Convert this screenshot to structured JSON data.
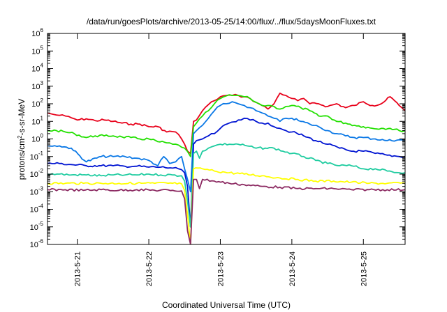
{
  "chart_data": {
    "type": "line",
    "title": "/data/run/goesPlots/archive/2013-05-25/14:00/flux/../flux/5daysMoonFluxes.txt",
    "xlabel": "Coordinated Universal Time (UTC)",
    "ylabel": "protons/cm2-s-sr-MeV",
    "y_scale": "log",
    "ylim": [
      "1e-6",
      "1e6"
    ],
    "xlim": [
      "2013-05-20T14:00",
      "2013-05-25T14:00"
    ],
    "grid": false,
    "legend": "none",
    "x_ticks": [
      "2013-5-21",
      "2013-5-22",
      "2013-5-23",
      "2013-5-24",
      "2013-5-25"
    ],
    "y_ticks": [
      "1e-6",
      "1e-5",
      "1e-4",
      "1e-3",
      "1e-2",
      "1e-1",
      "1e0",
      "1e1",
      "1e2",
      "1e3",
      "1e4",
      "1e5",
      "1e6"
    ],
    "series": [
      {
        "color": "#e8001a",
        "x": [
          "2013-05-20T14:00",
          "2013-05-20T16:00",
          "2013-05-20T18:00",
          "2013-05-20T20:00",
          "2013-05-20T22:00",
          "2013-05-21T00:00",
          "2013-05-21T03:00",
          "2013-05-21T06:00",
          "2013-05-21T09:00",
          "2013-05-21T12:00",
          "2013-05-21T15:00",
          "2013-05-21T18:00",
          "2013-05-21T21:00",
          "2013-05-22T00:00",
          "2013-05-22T03:00",
          "2013-05-22T06:00",
          "2013-05-22T08:00",
          "2013-05-22T09:00",
          "2013-05-22T10:00",
          "2013-05-22T11:00",
          "2013-05-22T12:00",
          "2013-05-22T13:00",
          "2013-05-22T14:00",
          "2013-05-22T15:00",
          "2013-05-22T16:00",
          "2013-05-22T18:00",
          "2013-05-22T20:00",
          "2013-05-22T22:00",
          "2013-05-23T00:00",
          "2013-05-23T02:00",
          "2013-05-23T04:00",
          "2013-05-23T06:00",
          "2013-05-23T08:00",
          "2013-05-23T10:00",
          "2013-05-23T12:00",
          "2013-05-23T14:00",
          "2013-05-23T16:00",
          "2013-05-23T18:00",
          "2013-05-23T20:00",
          "2013-05-23T22:00",
          "2013-05-24T00:00",
          "2013-05-24T02:00",
          "2013-05-24T04:00",
          "2013-05-24T06:00",
          "2013-05-24T09:00",
          "2013-05-24T12:00",
          "2013-05-24T15:00",
          "2013-05-24T18:00",
          "2013-05-24T21:00",
          "2013-05-25T00:00",
          "2013-05-25T03:00",
          "2013-05-25T06:00",
          "2013-05-25T09:00",
          "2013-05-25T12:00",
          "2013-05-25T14:00"
        ],
        "y": [
          "30",
          "25",
          "22",
          "20",
          "16",
          "12",
          "14",
          "11",
          "12",
          "10",
          "8",
          "7",
          "7",
          "5",
          "5",
          "2.5",
          "2.6",
          "2.5",
          "1.8",
          "1",
          "0.5",
          "0.2",
          "0.15",
          "10",
          "12",
          "40",
          "90",
          "150",
          "250",
          "300",
          "300",
          "300",
          "250",
          "200",
          "120",
          "80",
          "50",
          "100",
          "400",
          "300",
          "200",
          "150",
          "200",
          "100",
          "100",
          "70",
          "100",
          "60",
          "80",
          "130",
          "80",
          "100",
          "250",
          "80",
          "40"
        ]
      },
      {
        "color": "#22e000",
        "x": [
          "2013-05-20T14:00",
          "2013-05-20T17:00",
          "2013-05-20T20:00",
          "2013-05-20T23:00",
          "2013-05-21T03:00",
          "2013-05-21T06:00",
          "2013-05-21T09:00",
          "2013-05-21T12:00",
          "2013-05-21T15:00",
          "2013-05-21T18:00",
          "2013-05-21T21:00",
          "2013-05-22T00:00",
          "2013-05-22T03:00",
          "2013-05-22T06:00",
          "2013-05-22T08:00",
          "2013-05-22T10:00",
          "2013-05-22T12:00",
          "2013-05-22T14:00",
          "2013-05-22T15:00",
          "2013-05-22T16:00",
          "2013-05-22T18:00",
          "2013-05-22T20:00",
          "2013-05-22T22:00",
          "2013-05-23T00:00",
          "2013-05-23T02:00",
          "2013-05-23T04:00",
          "2013-05-23T06:00",
          "2013-05-23T08:00",
          "2013-05-23T10:00",
          "2013-05-23T12:00",
          "2013-05-23T14:00",
          "2013-05-23T16:00",
          "2013-05-23T18:00",
          "2013-05-23T20:00",
          "2013-05-23T22:00",
          "2013-05-24T00:00",
          "2013-05-24T03:00",
          "2013-05-24T06:00",
          "2013-05-24T09:00",
          "2013-05-24T12:00",
          "2013-05-24T15:00",
          "2013-05-24T18:00",
          "2013-05-24T21:00",
          "2013-05-25T00:00",
          "2013-05-25T03:00",
          "2013-05-25T06:00",
          "2013-05-25T09:00",
          "2013-05-25T12:00",
          "2013-05-25T14:00"
        ],
        "y": [
          "3",
          "3",
          "2.5",
          "2",
          "1.2",
          "1.5",
          "1.5",
          "1.5",
          "1.3",
          "1.2",
          "1",
          "1",
          "0.7",
          "0.6",
          "0.5",
          "0.45",
          "0.3",
          "0.1",
          "5",
          "8",
          "20",
          "40",
          "100",
          "200",
          "280",
          "300",
          "300",
          "250",
          "200",
          "120",
          "80",
          "80",
          "70",
          "50",
          "70",
          "80",
          "60",
          "40",
          "20",
          "20",
          "10",
          "8",
          "6",
          "5",
          "4",
          "4",
          "4",
          "3",
          "3"
        ]
      },
      {
        "color": "#0a78e6",
        "x": [
          "2013-05-20T14:00",
          "2013-05-20T18:00",
          "2013-05-20T22:00",
          "2013-05-21T03:00",
          "2013-05-21T08:00",
          "2013-05-21T12:00",
          "2013-05-21T16:00",
          "2013-05-21T20:00",
          "2013-05-22T00:00",
          "2013-05-22T03:00",
          "2013-05-22T05:00",
          "2013-05-22T07:00",
          "2013-05-22T09:00",
          "2013-05-22T11:00",
          "2013-05-22T12:00",
          "2013-05-22T13:00",
          "2013-05-22T14:00",
          "2013-05-22T15:00",
          "2013-05-22T16:00",
          "2013-05-22T18:00",
          "2013-05-22T20:00",
          "2013-05-22T22:00",
          "2013-05-23T00:00",
          "2013-05-23T02:00",
          "2013-05-23T04:00",
          "2013-05-23T06:00",
          "2013-05-23T08:00",
          "2013-05-23T10:00",
          "2013-05-23T12:00",
          "2013-05-23T14:00",
          "2013-05-23T16:00",
          "2013-05-23T18:00",
          "2013-05-23T20:00",
          "2013-05-23T22:00",
          "2013-05-24T00:00",
          "2013-05-24T03:00",
          "2013-05-24T06:00",
          "2013-05-24T09:00",
          "2013-05-24T12:00",
          "2013-05-24T15:00",
          "2013-05-24T18:00",
          "2013-05-24T21:00",
          "2013-05-25T00:00",
          "2013-05-25T04:00",
          "2013-05-25T08:00",
          "2013-05-25T12:00",
          "2013-05-25T14:00"
        ],
        "y": [
          "0.4",
          "0.4",
          "0.3",
          "0.05",
          "0.1",
          "0.1",
          "0.1",
          "0.08",
          "0.06",
          "0.03",
          "0.1",
          "0.04",
          "0.05",
          "0.1",
          "0.02",
          "0.005",
          "0.001",
          "2",
          "3",
          "6",
          "15",
          "40",
          "80",
          "100",
          "130",
          "100",
          "80",
          "60",
          "40",
          "30",
          "20",
          "15",
          "10",
          "15",
          "15",
          "10",
          "7",
          "5",
          "3",
          "2",
          "1.5",
          "1.2",
          "1.2",
          "1",
          "0.8",
          "0.9",
          "0.8"
        ]
      },
      {
        "color": "#0014d2",
        "x": [
          "2013-05-20T14:00",
          "2013-05-20T18:00",
          "2013-05-20T22:00",
          "2013-05-21T03:00",
          "2013-05-21T08:00",
          "2013-05-21T12:00",
          "2013-05-21T16:00",
          "2013-05-21T20:00",
          "2013-05-22T00:00",
          "2013-05-22T04:00",
          "2013-05-22T08:00",
          "2013-05-22T10:00",
          "2013-05-22T12:00",
          "2013-05-22T13:00",
          "2013-05-22T14:00",
          "2013-05-22T15:00",
          "2013-05-22T16:00",
          "2013-05-22T18:00",
          "2013-05-22T20:00",
          "2013-05-22T22:00",
          "2013-05-23T00:00",
          "2013-05-23T03:00",
          "2013-05-23T06:00",
          "2013-05-23T08:00",
          "2013-05-23T10:00",
          "2013-05-23T12:00",
          "2013-05-23T14:00",
          "2013-05-23T16:00",
          "2013-05-23T18:00",
          "2013-05-23T20:00",
          "2013-05-23T22:00",
          "2013-05-24T00:00",
          "2013-05-24T04:00",
          "2013-05-24T08:00",
          "2013-05-24T12:00",
          "2013-05-24T16:00",
          "2013-05-24T20:00",
          "2013-05-25T00:00",
          "2013-05-25T04:00",
          "2013-05-25T08:00",
          "2013-05-25T12:00",
          "2013-05-25T14:00"
        ],
        "y": [
          "0.04",
          "0.04",
          "0.035",
          "0.03",
          "0.03",
          "0.03",
          "0.028",
          "0.028",
          "0.025",
          "0.025",
          "0.022",
          "0.02",
          "0.012",
          "0.002",
          "0.00001",
          "0.5",
          "0.8",
          "1",
          "1.5",
          "2",
          "4",
          "8",
          "12",
          "15",
          "12",
          "10",
          "8",
          "8",
          "5",
          "4",
          "3",
          "2.5",
          "1.5",
          "0.8",
          "0.5",
          "0.3",
          "0.2",
          "0.2",
          "0.15",
          "0.12",
          "0.1",
          "0.1"
        ]
      },
      {
        "color": "#1fcca0",
        "x": [
          "2013-05-20T14:00",
          "2013-05-20T18:00",
          "2013-05-20T22:00",
          "2013-05-21T03:00",
          "2013-05-21T08:00",
          "2013-05-21T12:00",
          "2013-05-21T16:00",
          "2013-05-21T20:00",
          "2013-05-22T00:00",
          "2013-05-22T04:00",
          "2013-05-22T08:00",
          "2013-05-22T11:00",
          "2013-05-22T12:00",
          "2013-05-22T13:00",
          "2013-05-22T14:00",
          "2013-05-22T15:00",
          "2013-05-22T16:00",
          "2013-05-22T17:00",
          "2013-05-22T18:00",
          "2013-05-22T20:00",
          "2013-05-22T22:00",
          "2013-05-23T00:00",
          "2013-05-23T03:00",
          "2013-05-23T06:00",
          "2013-05-23T09:00",
          "2013-05-23T12:00",
          "2013-05-23T15:00",
          "2013-05-23T18:00",
          "2013-05-23T21:00",
          "2013-05-24T00:00",
          "2013-05-24T04:00",
          "2013-05-24T08:00",
          "2013-05-24T12:00",
          "2013-05-24T16:00",
          "2013-05-24T20:00",
          "2013-05-25T00:00",
          "2013-05-25T04:00",
          "2013-05-25T08:00",
          "2013-05-25T12:00",
          "2013-05-25T14:00"
        ],
        "y": [
          "0.01",
          "0.01",
          "0.009",
          "0.009",
          "0.008",
          "0.009",
          "0.009",
          "0.009",
          "0.01",
          "0.009",
          "0.009",
          "0.008",
          "0.004",
          "0.0003",
          "0.00001",
          "0.15",
          "0.2",
          "0.08",
          "0.2",
          "0.3",
          "0.4",
          "0.5",
          "0.5",
          "0.5",
          "0.4",
          "0.3",
          "0.3",
          "0.3",
          "0.2",
          "0.15",
          "0.1",
          "0.06",
          "0.04",
          "0.03",
          "0.03",
          "0.02",
          "0.02",
          "0.015",
          "0.012",
          "0.012"
        ]
      },
      {
        "color": "#ffff00",
        "x": [
          "2013-05-20T14:00",
          "2013-05-20T20:00",
          "2013-05-21T02:00",
          "2013-05-21T08:00",
          "2013-05-21T14:00",
          "2013-05-21T20:00",
          "2013-05-22T02:00",
          "2013-05-22T08:00",
          "2013-05-22T11:00",
          "2013-05-22T12:00",
          "2013-05-22T13:00",
          "2013-05-22T14:00",
          "2013-05-22T15:00",
          "2013-05-22T18:00",
          "2013-05-22T22:00",
          "2013-05-23T03:00",
          "2013-05-23T08:00",
          "2013-05-23T14:00",
          "2013-05-23T20:00",
          "2013-05-24T02:00",
          "2013-05-24T08:00",
          "2013-05-24T14:00",
          "2013-05-24T20:00",
          "2013-05-25T02:00",
          "2013-05-25T08:00",
          "2013-05-25T14:00"
        ],
        "y": [
          "0.003",
          "0.003",
          "0.003",
          "0.003",
          "0.003",
          "0.003",
          "0.003",
          "0.003",
          "0.0028",
          "0.0012",
          "0.00005",
          "0.000001",
          "0.02",
          "0.02",
          "0.015",
          "0.012",
          "0.01",
          "0.008",
          "0.006",
          "0.005",
          "0.004",
          "0.004",
          "0.0035",
          "0.003",
          "0.003",
          "0.003"
        ]
      },
      {
        "color": "#8c2a62",
        "x": [
          "2013-05-20T14:00",
          "2013-05-20T20:00",
          "2013-05-21T02:00",
          "2013-05-21T08:00",
          "2013-05-21T14:00",
          "2013-05-21T20:00",
          "2013-05-22T02:00",
          "2013-05-22T08:00",
          "2013-05-22T11:00",
          "2013-05-22T12:00",
          "2013-05-22T13:00",
          "2013-05-22T14:00",
          "2013-05-22T15:00",
          "2013-05-22T16:00",
          "2013-05-22T17:00",
          "2013-05-22T18:00",
          "2013-05-22T22:00",
          "2013-05-23T03:00",
          "2013-05-23T08:00",
          "2013-05-23T14:00",
          "2013-05-23T20:00",
          "2013-05-24T02:00",
          "2013-05-24T08:00",
          "2013-05-24T14:00",
          "2013-05-24T20:00",
          "2013-05-25T02:00",
          "2013-05-25T08:00",
          "2013-05-25T14:00"
        ],
        "y": [
          "0.0013",
          "0.0013",
          "0.0012",
          "0.0013",
          "0.0012",
          "0.0013",
          "0.0012",
          "0.0012",
          "0.0011",
          "0.0004",
          "0.000006",
          "0.000001",
          "0.005",
          "0.005",
          "0.0015",
          "0.005",
          "0.004",
          "0.003",
          "0.0025",
          "0.002",
          "0.0018",
          "0.0015",
          "0.0015",
          "0.0015",
          "0.0013",
          "0.0013",
          "0.0013",
          "0.0013"
        ]
      }
    ]
  }
}
